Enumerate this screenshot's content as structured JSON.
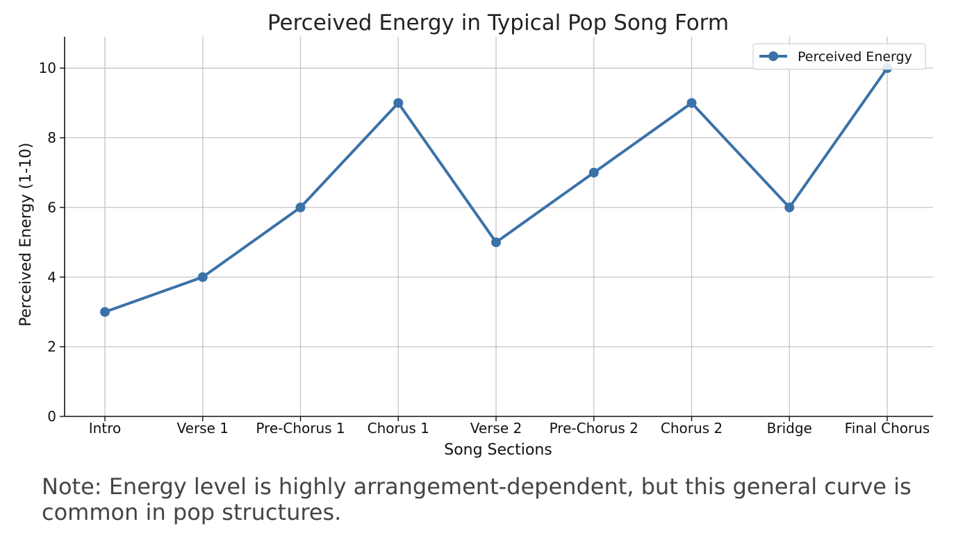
{
  "chart_data": {
    "type": "line",
    "title": "Perceived Energy in Typical Pop Song Form",
    "xlabel": "Song Sections",
    "ylabel": "Perceived Energy (1-10)",
    "categories": [
      "Intro",
      "Verse 1",
      "Pre-Chorus 1",
      "Chorus 1",
      "Verse 2",
      "Pre-Chorus 2",
      "Chorus 2",
      "Bridge",
      "Final Chorus"
    ],
    "series": [
      {
        "name": "Perceived Energy",
        "values": [
          3,
          4,
          6,
          9,
          5,
          7,
          9,
          6,
          10
        ],
        "color": "#3a72a8",
        "marker": "circle"
      }
    ],
    "ylim": [
      0,
      10.9
    ],
    "yticks": [
      0,
      2,
      4,
      6,
      8,
      10
    ],
    "grid": true,
    "legend": "top-right"
  },
  "note": {
    "prefix": "Note:",
    "text": " Energy level is highly arrangement-dependent, but this general curve is common in pop structures."
  }
}
